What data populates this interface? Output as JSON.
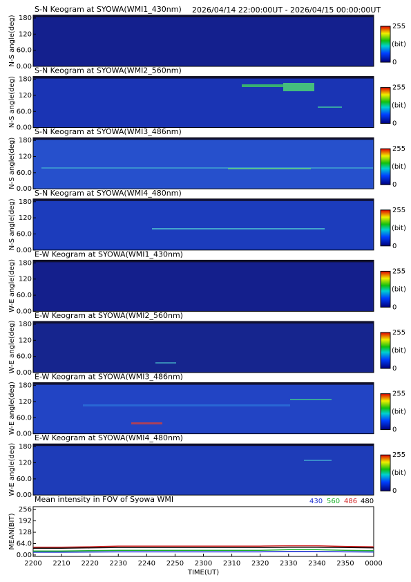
{
  "header": {
    "time_range": "2026/04/14 22:00:00UT - 2026/04/15 00:00:00UT"
  },
  "keograms": [
    {
      "title": "S-N Keogram at SYOWA(WMI1_430nm)",
      "y_label": "N-S angle(deg)"
    },
    {
      "title": "S-N Keogram at SYOWA(WMI2_560nm)",
      "y_label": "N-S angle(deg)"
    },
    {
      "title": "S-N Keogram at SYOWA(WMI3_486nm)",
      "y_label": "N-S angle(deg)"
    },
    {
      "title": "S-N Keogram at SYOWA(WMI4_480nm)",
      "y_label": "N-S angle(deg)"
    },
    {
      "title": "E-W Keogram at SYOWA(WMI1_430nm)",
      "y_label": "W-E angle(deg)"
    },
    {
      "title": "E-W Keogram at SYOWA(WMI2_560nm)",
      "y_label": "W-E angle(deg)"
    },
    {
      "title": "E-W Keogram at SYOWA(WMI3_486nm)",
      "y_label": "W-E angle(deg)"
    },
    {
      "title": "E-W Keogram at SYOWA(WMI4_480nm)",
      "y_label": "W-E angle(deg)"
    }
  ],
  "keogram_axis": {
    "ylim": [
      0,
      180
    ],
    "yticks": [
      {
        "value": 0,
        "label": "0.00"
      },
      {
        "value": 60,
        "label": "60.0"
      },
      120,
      180
    ]
  },
  "colorbar": {
    "range": [
      0,
      255
    ],
    "ticks": [
      0,
      255
    ],
    "label": "(bit)"
  },
  "chart_data": {
    "type": "line",
    "title": "Mean intensity in FOV of Syowa WMI",
    "x_label": "TIME(UT)",
    "y_label": "MEAN(BIT)",
    "x": [
      0,
      10,
      20,
      30,
      40,
      50,
      60,
      70,
      80,
      90,
      100,
      110,
      120
    ],
    "xlim": [
      0,
      120
    ],
    "xticks": [
      {
        "value": 0,
        "label": "2200"
      },
      {
        "value": 10,
        "label": "2210"
      },
      {
        "value": 20,
        "label": "2220"
      },
      {
        "value": 30,
        "label": "2230"
      },
      {
        "value": 40,
        "label": "2240"
      },
      {
        "value": 50,
        "label": "2250"
      },
      {
        "value": 60,
        "label": "2300"
      },
      {
        "value": 70,
        "label": "2310"
      },
      {
        "value": 80,
        "label": "2320"
      },
      {
        "value": 90,
        "label": "2330"
      },
      {
        "value": 100,
        "label": "2340"
      },
      {
        "value": 110,
        "label": "2350"
      },
      {
        "value": 120,
        "label": "0000"
      }
    ],
    "ylim": [
      -8,
      272
    ],
    "yticks": [
      {
        "value": 0,
        "label": "0.00"
      },
      {
        "value": 64,
        "label": "64.0"
      },
      128,
      192,
      256
    ],
    "series": [
      {
        "name": "430",
        "color": "#1c2fd0",
        "values": [
          16,
          16,
          17,
          18,
          18,
          18,
          18,
          18,
          18,
          20,
          20,
          18,
          17
        ]
      },
      {
        "name": "560",
        "color": "#18b028",
        "values": [
          22,
          22,
          24,
          26,
          26,
          26,
          26,
          26,
          26,
          30,
          30,
          26,
          24
        ]
      },
      {
        "name": "486",
        "color": "#d02020",
        "values": [
          44,
          44,
          46,
          50,
          50,
          50,
          50,
          50,
          50,
          52,
          52,
          48,
          46
        ]
      },
      {
        "name": "480",
        "color": "#000000",
        "values": [
          38,
          38,
          40,
          42,
          42,
          42,
          42,
          42,
          42,
          44,
          44,
          42,
          40
        ]
      }
    ]
  }
}
